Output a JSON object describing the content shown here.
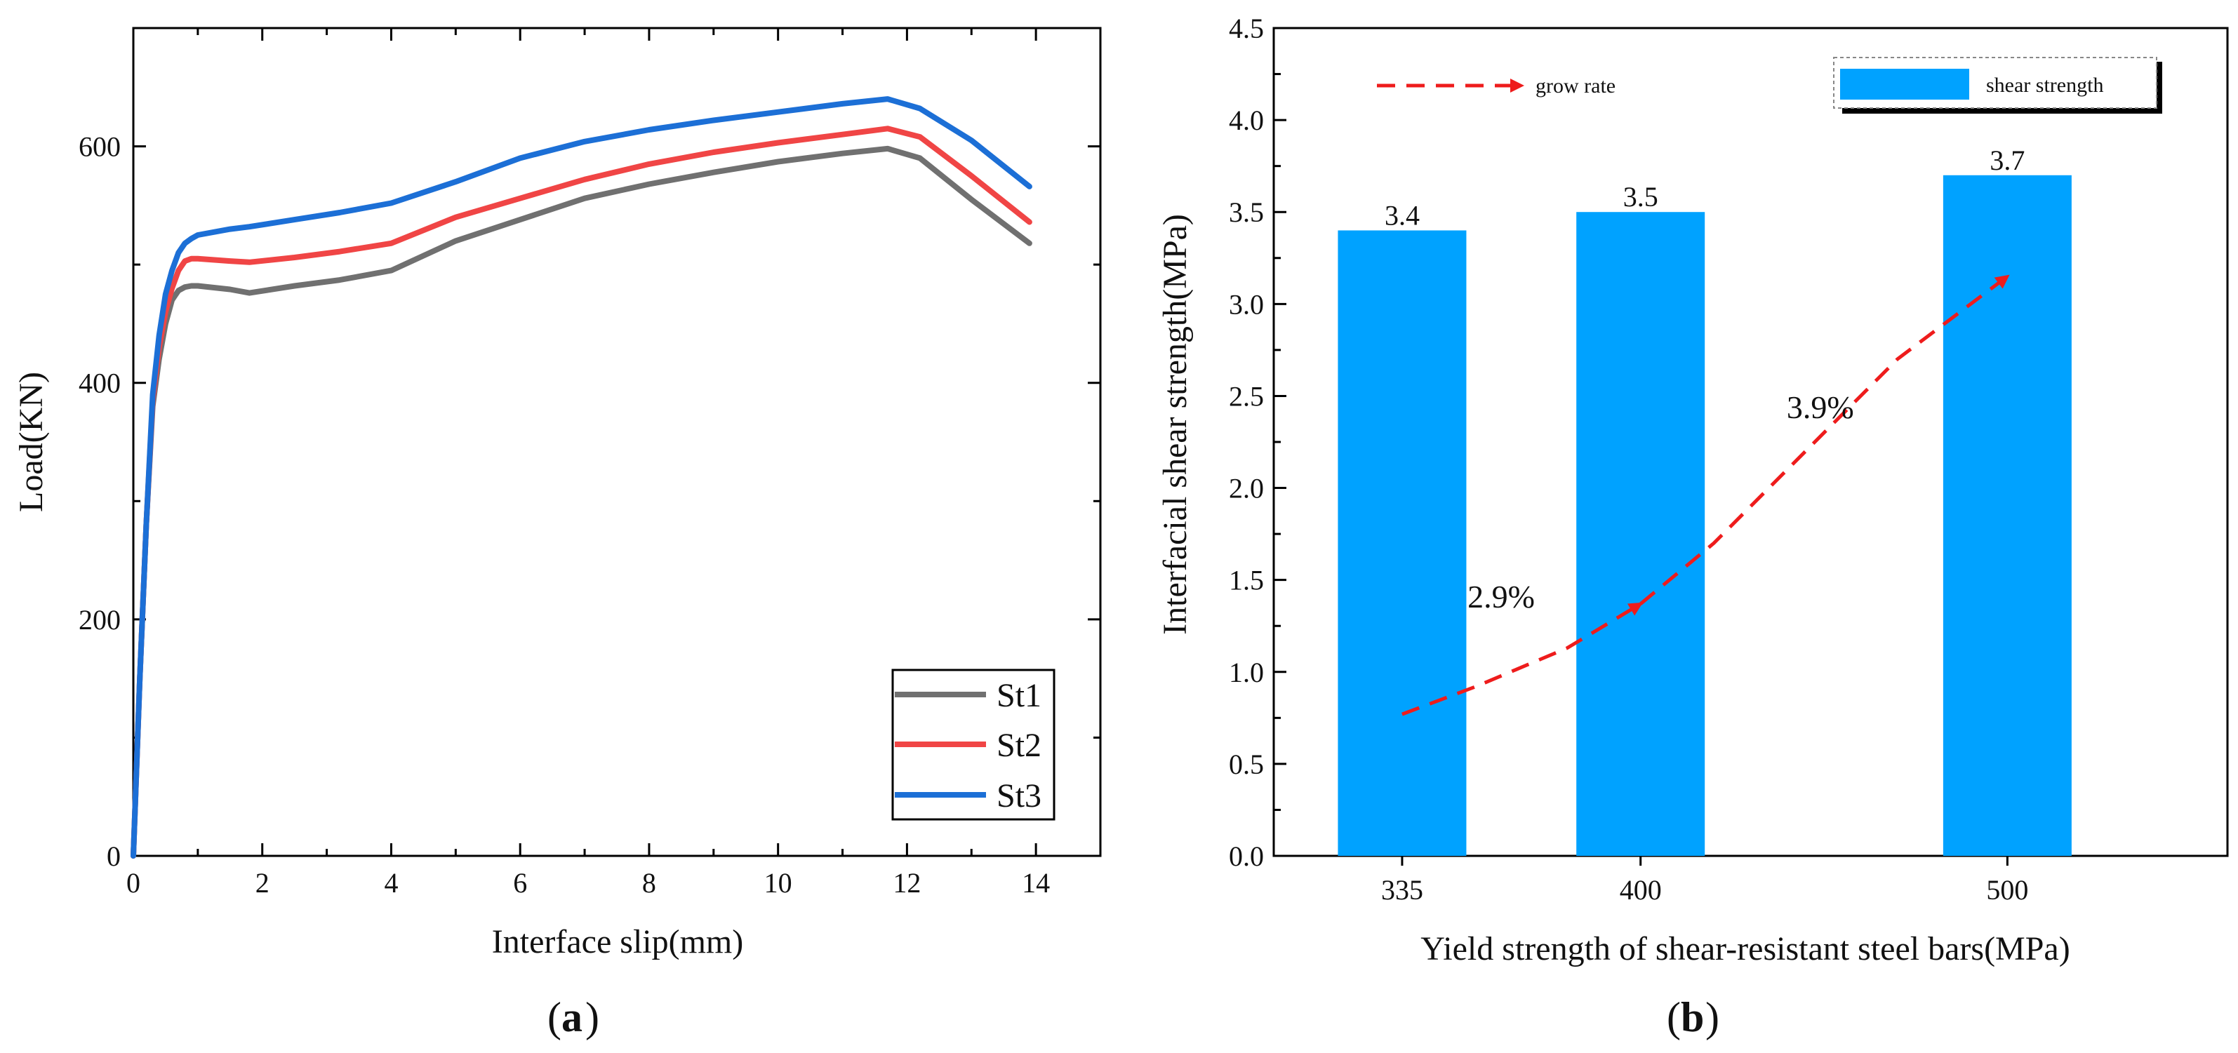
{
  "chart_data": [
    {
      "type": "line",
      "panel": "a",
      "panel_label": "a",
      "xlabel": "Interface slip(mm)",
      "ylabel": "Load(KN)",
      "xlim": [
        0,
        15
      ],
      "ylim": [
        0,
        700
      ],
      "xticks": [
        0,
        2,
        4,
        6,
        8,
        10,
        12,
        14
      ],
      "yticks": [
        0,
        200,
        400,
        600
      ],
      "x_tick_labels": [
        "0",
        "2",
        "4",
        "6",
        "8",
        "10",
        "12",
        "14"
      ],
      "y_tick_labels": [
        "0",
        "200",
        "400",
        "600"
      ],
      "legend_position": "bottom-right",
      "series": [
        {
          "name": "St1",
          "color": "#707070",
          "x": [
            0,
            0.1,
            0.2,
            0.3,
            0.4,
            0.5,
            0.6,
            0.7,
            0.8,
            0.9,
            1.0,
            1.5,
            1.8,
            2.5,
            3.2,
            4.0,
            5.0,
            6.0,
            7.0,
            8.0,
            9.0,
            10.0,
            11.0,
            11.7,
            12.2,
            13.0,
            13.9
          ],
          "y": [
            0,
            150,
            280,
            380,
            420,
            450,
            470,
            478,
            481,
            482,
            482,
            479,
            476,
            482,
            487,
            495,
            520,
            538,
            556,
            568,
            578,
            587,
            594,
            598,
            590,
            555,
            518
          ]
        },
        {
          "name": "St2",
          "color": "#f04545",
          "x": [
            0,
            0.1,
            0.2,
            0.3,
            0.4,
            0.5,
            0.6,
            0.7,
            0.8,
            0.9,
            1.0,
            1.5,
            1.8,
            2.5,
            3.2,
            4.0,
            5.0,
            6.0,
            7.0,
            8.0,
            9.0,
            10.0,
            11.0,
            11.7,
            12.2,
            13.0,
            13.9
          ],
          "y": [
            0,
            150,
            280,
            385,
            430,
            460,
            480,
            495,
            503,
            505,
            505,
            503,
            502,
            506,
            511,
            518,
            540,
            556,
            572,
            585,
            595,
            603,
            610,
            615,
            608,
            575,
            536
          ]
        },
        {
          "name": "St3",
          "color": "#1c6fd6",
          "x": [
            0,
            0.1,
            0.2,
            0.3,
            0.4,
            0.5,
            0.6,
            0.7,
            0.8,
            0.9,
            1.0,
            1.5,
            1.8,
            2.5,
            3.2,
            4.0,
            5.0,
            6.0,
            7.0,
            8.0,
            9.0,
            10.0,
            11.0,
            11.7,
            12.2,
            13.0,
            13.9
          ],
          "y": [
            0,
            150,
            280,
            390,
            440,
            475,
            495,
            510,
            518,
            522,
            525,
            530,
            532,
            538,
            544,
            552,
            570,
            590,
            604,
            614,
            622,
            629,
            636,
            640,
            632,
            605,
            566
          ]
        }
      ]
    },
    {
      "type": "bar",
      "panel": "b",
      "panel_label": "b",
      "xlabel": "Yield strength of shear-resistant steel bars(MPa)",
      "ylabel": "Interfacial shear strength(MPa)",
      "xlim": [
        300,
        560
      ],
      "ylim": [
        0,
        4.5
      ],
      "yticks": [
        0.0,
        0.5,
        1.0,
        1.5,
        2.0,
        2.5,
        3.0,
        3.5,
        4.0,
        4.5
      ],
      "y_tick_labels": [
        "0.0",
        "0.5",
        "1.0",
        "1.5",
        "2.0",
        "2.5",
        "3.0",
        "3.5",
        "4.0",
        "4.5"
      ],
      "categories": [
        "335",
        "400",
        "500"
      ],
      "x_positions": [
        335,
        400,
        500
      ],
      "values": [
        3.4,
        3.5,
        3.7
      ],
      "value_labels": [
        "3.4",
        "3.5",
        "3.7"
      ],
      "bar_color": "#00a2ff",
      "legend": {
        "bar_name": "shear strength",
        "line_name": "grow rate",
        "line_color": "#ee1c1c"
      },
      "trend_line": {
        "name": "grow rate",
        "x": [
          335,
          355,
          380,
          400,
          420,
          445,
          470,
          500
        ],
        "y": [
          0.77,
          0.92,
          1.13,
          1.37,
          1.7,
          2.2,
          2.7,
          3.15
        ]
      },
      "annotations": [
        {
          "text": "2.9%",
          "x": 362,
          "y": 1.35
        },
        {
          "text": "3.9%",
          "x": 449,
          "y": 2.38
        }
      ]
    }
  ]
}
